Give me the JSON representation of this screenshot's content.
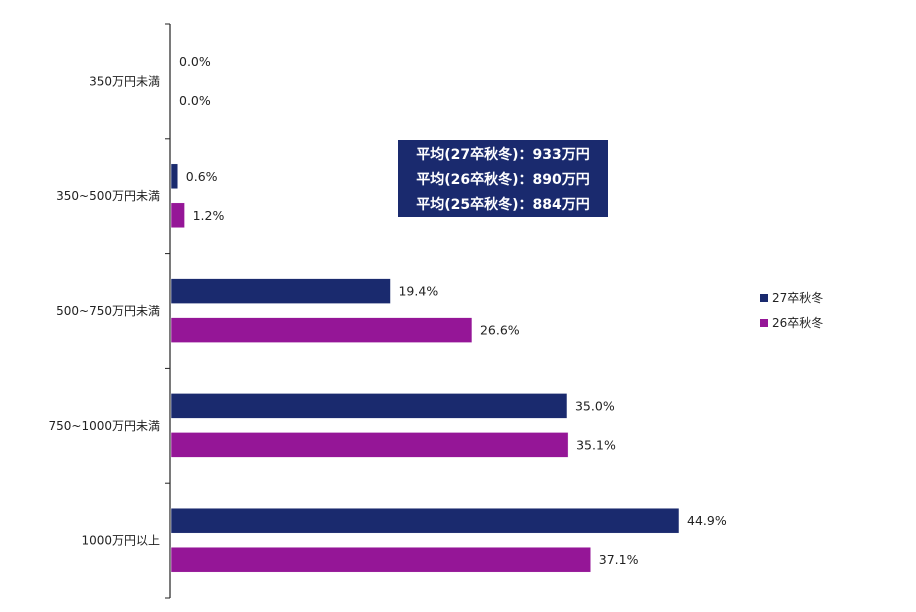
{
  "chart_data": {
    "type": "bar",
    "orientation": "horizontal",
    "categories": [
      "350万円未満",
      "350~500万円未満",
      "500~750万円未満",
      "750~1000万円未満",
      "1000万円以上"
    ],
    "series": [
      {
        "name": "27卒秋冬",
        "values": [
          0.0,
          0.6,
          19.4,
          35.0,
          44.9
        ],
        "labels": [
          "0.0%",
          "0.6%",
          "19.4%",
          "35.0%",
          "44.9%"
        ],
        "color": "#1a2a6e"
      },
      {
        "name": "26卒秋冬",
        "values": [
          0.0,
          1.2,
          26.6,
          35.1,
          37.1
        ],
        "labels": [
          "0.0%",
          "1.2%",
          "26.6%",
          "35.1%",
          "37.1%"
        ],
        "color": "#951697"
      }
    ],
    "xlim": [
      0,
      50
    ],
    "legend_position": "right",
    "grid": false,
    "annotation": {
      "lines": [
        "平均(27卒秋冬)：933万円",
        "平均(26卒秋冬)：890万円",
        "平均(25卒秋冬)：884万円"
      ],
      "background": "#1a2a6e"
    }
  }
}
